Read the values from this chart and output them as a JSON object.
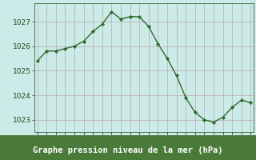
{
  "hours": [
    0,
    1,
    2,
    3,
    4,
    5,
    6,
    7,
    8,
    9,
    10,
    11,
    12,
    13,
    14,
    15,
    16,
    17,
    18,
    19,
    20,
    21,
    22,
    23
  ],
  "pressure": [
    1025.4,
    1025.8,
    1025.8,
    1025.9,
    1026.0,
    1026.2,
    1026.6,
    1026.9,
    1027.4,
    1027.1,
    1027.2,
    1027.2,
    1026.8,
    1026.1,
    1025.5,
    1024.8,
    1023.9,
    1023.3,
    1023.0,
    1022.9,
    1023.1,
    1023.5,
    1023.8,
    1023.7
  ],
  "ylim": [
    1022.5,
    1027.75
  ],
  "yticks": [
    1023,
    1024,
    1025,
    1026,
    1027
  ],
  "xlim": [
    -0.3,
    23.3
  ],
  "line_color": "#2d6b2d",
  "marker_color": "#2d6b2d",
  "plot_bg_color": "#cceae8",
  "fig_bg_color": "#cceae8",
  "bottom_band_color": "#4a7a3a",
  "grid_color": "#b8a8a8",
  "xlabel": "Graphe pression niveau de la mer (hPa)",
  "xlabel_color": "#ffffff",
  "tick_color": "#1a4a1a",
  "tick_fontsize": 6.5,
  "xlabel_fontsize": 7.5
}
